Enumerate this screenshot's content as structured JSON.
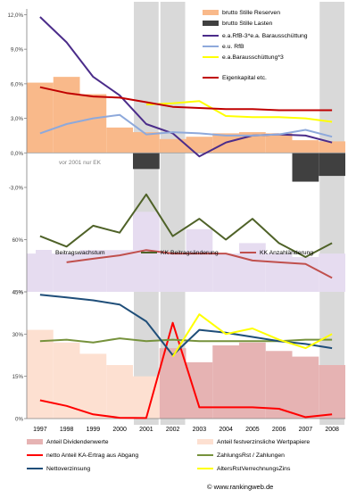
{
  "footer": {
    "copyright": "© www.rankingweb.de"
  },
  "chart_data": [
    {
      "type": "line",
      "panel": "top",
      "x": [
        "1997",
        "1998",
        "1999",
        "2000",
        "2001",
        "2002",
        "2003",
        "2004",
        "2005",
        "2006",
        "2007",
        "2008"
      ],
      "ylim": [
        -3,
        12.5
      ],
      "yticks": [
        "12,0%",
        "9,0%",
        "6,0%",
        "3,0%",
        "0,0%",
        "-3,0%"
      ],
      "ytick_values": [
        12,
        9,
        6,
        3,
        0,
        -3
      ],
      "shaded_years": [
        "2001",
        "2002",
        "2008"
      ],
      "annotations": [
        "vor 2001 nur EK"
      ],
      "series": [
        {
          "name": "brutto Stille Reserven",
          "kind": "bar",
          "color": "#f9b98a",
          "values": [
            6.1,
            6.6,
            5.1,
            2.2,
            1.8,
            1.2,
            1.4,
            1.7,
            1.8,
            1.7,
            1.1,
            1.0
          ]
        },
        {
          "name": "brutto Stille Lasten",
          "kind": "bar",
          "color": "#404040",
          "values": [
            0,
            0,
            0,
            0,
            -1.4,
            0,
            0,
            0,
            0,
            0,
            -2.5,
            -2.0
          ]
        },
        {
          "name": "e.a.RfB-3*e.a. Barausschüttung",
          "kind": "line",
          "color": "#4b2c8a",
          "values": [
            11.8,
            9.6,
            6.6,
            5.0,
            2.5,
            1.7,
            -0.3,
            0.9,
            1.5,
            1.6,
            1.5,
            0.9
          ]
        },
        {
          "name": "e.u. RfB",
          "kind": "line",
          "color": "#8ea9db",
          "values": [
            1.7,
            2.5,
            3.0,
            3.3,
            1.6,
            1.8,
            1.7,
            1.5,
            1.5,
            1.6,
            2.0,
            1.4
          ]
        },
        {
          "name": "e.a.Barausschüttung*3",
          "kind": "line",
          "color": "#ffff00",
          "values": [
            null,
            null,
            null,
            null,
            4.2,
            4.3,
            4.5,
            3.2,
            3.1,
            3.1,
            3.0,
            2.7
          ]
        },
        {
          "name": "Eigenkapital etc.",
          "kind": "line",
          "color": "#c00000",
          "values": [
            5.7,
            5.2,
            4.9,
            4.8,
            4.4,
            4.0,
            3.9,
            3.8,
            3.8,
            3.7,
            3.7,
            3.7
          ]
        }
      ]
    },
    {
      "type": "line",
      "panel": "middle",
      "x": [
        "1997",
        "1998",
        "1999",
        "2000",
        "2001",
        "2002",
        "2003",
        "2004",
        "2005",
        "2006",
        "2007",
        "2008"
      ],
      "ylim": [
        45,
        75
      ],
      "yticks": [
        "60%",
        "45%"
      ],
      "ytick_values": [
        60,
        45
      ],
      "shaded_years": [
        "2001",
        "2002",
        "2008"
      ],
      "series": [
        {
          "name": "Beitragswachstum",
          "kind": "bar",
          "color": "#e6dcf0",
          "values": [
            56,
            56,
            57,
            57,
            68,
            56,
            63,
            56,
            59,
            56,
            55,
            56
          ]
        },
        {
          "name": "KK Beitragsänderung",
          "kind": "line",
          "color": "#4f6228",
          "values": [
            61,
            58,
            64,
            62,
            73,
            61,
            66,
            60,
            66,
            59,
            55,
            59
          ]
        },
        {
          "name": "KK Anzahländerung",
          "kind": "line",
          "color": "#c0504d",
          "values": [
            null,
            53.5,
            54.5,
            55.5,
            57,
            56,
            56,
            56,
            54,
            53.5,
            53,
            49
          ]
        }
      ]
    },
    {
      "type": "line",
      "panel": "bottom",
      "x": [
        "1997",
        "1998",
        "1999",
        "2000",
        "2001",
        "2002",
        "2003",
        "2004",
        "2005",
        "2006",
        "2007",
        "2008"
      ],
      "ylim": [
        0,
        45
      ],
      "yticks": [
        "45%",
        "30%",
        "15%",
        "0%"
      ],
      "ytick_values": [
        45,
        30,
        15,
        0
      ],
      "shaded_years": [
        "2001",
        "2002",
        "2008"
      ],
      "series": [
        {
          "name": "Anteil Dividendenwerte",
          "kind": "bar",
          "color": "#e6b3b3",
          "values": [
            0,
            0,
            0,
            0,
            0,
            25,
            20,
            26,
            27,
            24,
            22,
            19
          ]
        },
        {
          "name": "Anteil festverzinsliche Wertpapiere",
          "kind": "bar",
          "color": "#fde0d1",
          "values": [
            31.5,
            27,
            23,
            19,
            15,
            0,
            0,
            0,
            0,
            0,
            0,
            0
          ]
        },
        {
          "name": "netto Anteil KA-Ertrag aus Abgang",
          "kind": "line",
          "color": "#ff0000",
          "values": [
            6.5,
            4.5,
            1.5,
            0.3,
            0.2,
            34,
            4,
            4,
            4,
            3.5,
            0.5,
            1.5
          ]
        },
        {
          "name": "ZahlungsRst / Zahlungen",
          "kind": "line",
          "color": "#76923c",
          "values": [
            27.5,
            28,
            27,
            28.5,
            27.5,
            28,
            27.5,
            27.5,
            27.5,
            27.5,
            28,
            28
          ]
        },
        {
          "name": "Nettoverzinsung",
          "kind": "line",
          "color": "#1f4e79",
          "values": [
            44,
            43,
            42,
            40.5,
            34.5,
            22.5,
            31.5,
            30.5,
            29,
            27.5,
            26.5,
            25
          ]
        },
        {
          "name": "AltersRstVerrechnungsZins",
          "kind": "line",
          "color": "#ffff00",
          "values": [
            null,
            null,
            null,
            null,
            null,
            22,
            37,
            30,
            32,
            28,
            25,
            30
          ]
        }
      ]
    }
  ]
}
